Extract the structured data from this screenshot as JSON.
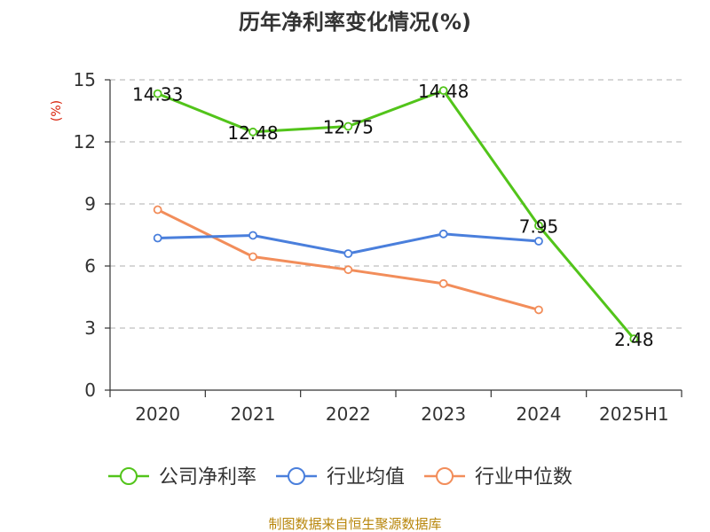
{
  "chart_data": {
    "type": "line",
    "title": "历年净利率变化情况(%)",
    "ylabel": "(%)",
    "categories": [
      "2020",
      "2021",
      "2022",
      "2023",
      "2024",
      "2025H1"
    ],
    "ylim": [
      0,
      15
    ],
    "yticks": [
      "0",
      "3",
      "6",
      "9",
      "12",
      "15"
    ],
    "grid": true,
    "legend_position": "bottom",
    "series": [
      {
        "name": "公司净利率",
        "color": "#52c41a",
        "values": [
          14.33,
          12.48,
          12.75,
          14.48,
          7.95,
          2.48
        ],
        "labels": [
          "14.33",
          "12.48",
          "12.75",
          "14.48",
          "7.95",
          "2.48"
        ]
      },
      {
        "name": "行业均值",
        "color": "#4a7fdc",
        "values": [
          7.35,
          7.48,
          6.6,
          7.55,
          7.2,
          null
        ]
      },
      {
        "name": "行业中位数",
        "color": "#f28d5a",
        "values": [
          8.72,
          6.45,
          5.82,
          5.15,
          3.88,
          null
        ]
      }
    ]
  },
  "footer": "制图数据来自恒生聚源数据库"
}
